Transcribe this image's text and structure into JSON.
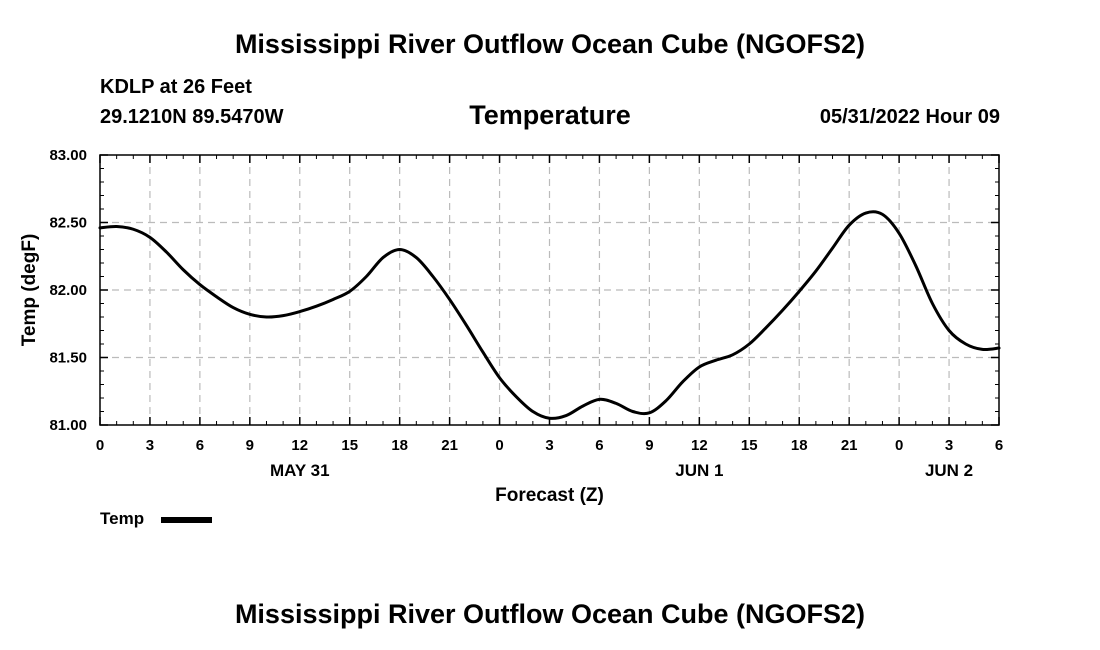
{
  "header": {
    "title": "Mississippi River Outflow Ocean Cube (NGOFS2)",
    "station": "KDLP at 26 Feet",
    "coords": "29.1210N  89.5470W",
    "variable": "Temperature",
    "datetime": "05/31/2022 Hour 09"
  },
  "footer": {
    "title": "Mississippi River Outflow Ocean Cube (NGOFS2)"
  },
  "legend": {
    "label": "Temp"
  },
  "chart_data": {
    "type": "line",
    "title": "Temperature",
    "xlabel": "Forecast (Z)",
    "ylabel": "Temp (degF)",
    "xlim": [
      0,
      54
    ],
    "ylim": [
      81.0,
      83.0
    ],
    "x_ticks": [
      0,
      3,
      6,
      9,
      12,
      15,
      18,
      21,
      24,
      27,
      30,
      33,
      36,
      39,
      42,
      45,
      48,
      51,
      54
    ],
    "x_tick_labels": [
      "0",
      "3",
      "6",
      "9",
      "12",
      "15",
      "18",
      "21",
      "0",
      "3",
      "6",
      "9",
      "12",
      "15",
      "18",
      "21",
      "0",
      "3",
      "6"
    ],
    "y_ticks": [
      81.0,
      81.5,
      82.0,
      82.5,
      83.0
    ],
    "y_tick_labels": [
      "81.00",
      "81.50",
      "82.00",
      "82.50",
      "83.00"
    ],
    "date_labels": [
      {
        "x": 12,
        "label": "MAY 31"
      },
      {
        "x": 36,
        "label": "JUN 1"
      },
      {
        "x": 51,
        "label": "JUN 2"
      }
    ],
    "grid": true,
    "legend_position": "bottom-left",
    "series": [
      {
        "name": "Temp",
        "color": "#000000",
        "x": [
          0,
          1,
          2,
          3,
          4,
          5,
          6,
          7,
          8,
          9,
          10,
          11,
          12,
          13,
          14,
          15,
          16,
          17,
          18,
          19,
          20,
          21,
          22,
          23,
          24,
          25,
          26,
          27,
          28,
          29,
          30,
          31,
          32,
          33,
          34,
          35,
          36,
          37,
          38,
          39,
          40,
          41,
          42,
          43,
          44,
          45,
          46,
          47,
          48,
          49,
          50,
          51,
          52,
          53,
          54
        ],
        "values": [
          82.46,
          82.47,
          82.45,
          82.39,
          82.28,
          82.15,
          82.04,
          81.95,
          81.87,
          81.82,
          81.8,
          81.81,
          81.84,
          81.88,
          81.93,
          81.99,
          82.1,
          82.24,
          82.3,
          82.24,
          82.1,
          81.93,
          81.74,
          81.54,
          81.35,
          81.21,
          81.1,
          81.05,
          81.07,
          81.14,
          81.19,
          81.16,
          81.1,
          81.09,
          81.18,
          81.32,
          81.43,
          81.48,
          81.52,
          81.6,
          81.72,
          81.85,
          81.99,
          82.14,
          82.31,
          82.48,
          82.57,
          82.56,
          82.42,
          82.18,
          81.9,
          81.7,
          81.6,
          81.56,
          81.57
        ]
      }
    ]
  }
}
